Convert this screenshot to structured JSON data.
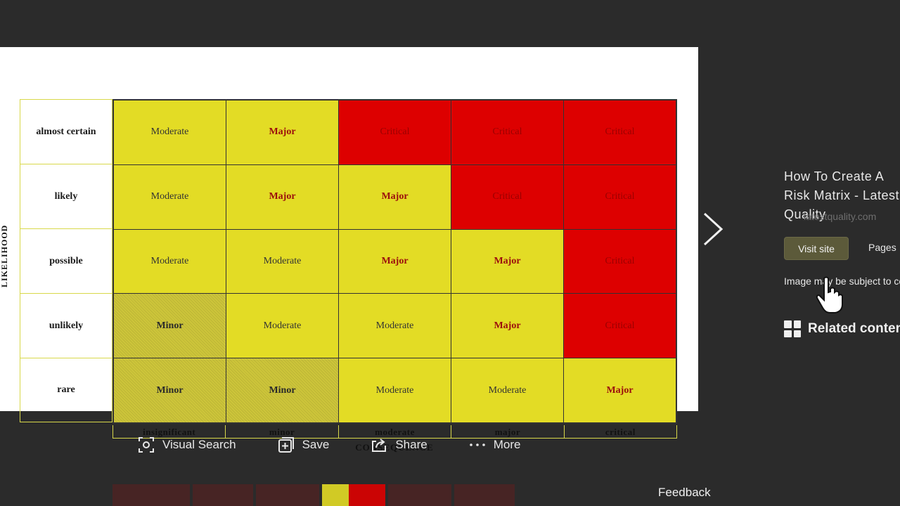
{
  "risk_matrix": {
    "y_axis_label": "LIKELIHOOD",
    "x_axis_label": "CONSEQUENCE",
    "rows": [
      {
        "label": "almost certain",
        "cells": [
          {
            "text": "Moderate",
            "level": "moderate"
          },
          {
            "text": "Major",
            "level": "major"
          },
          {
            "text": "Critical",
            "level": "critical"
          },
          {
            "text": "Critical",
            "level": "critical"
          },
          {
            "text": "Critical",
            "level": "critical"
          }
        ]
      },
      {
        "label": "likely",
        "cells": [
          {
            "text": "Moderate",
            "level": "moderate"
          },
          {
            "text": "Major",
            "level": "major"
          },
          {
            "text": "Major",
            "level": "major"
          },
          {
            "text": "Critical",
            "level": "critical"
          },
          {
            "text": "Critical",
            "level": "critical"
          }
        ]
      },
      {
        "label": "possible",
        "cells": [
          {
            "text": "Moderate",
            "level": "moderate"
          },
          {
            "text": "Moderate",
            "level": "moderate"
          },
          {
            "text": "Major",
            "level": "major"
          },
          {
            "text": "Major",
            "level": "major"
          },
          {
            "text": "Critical",
            "level": "critical"
          }
        ]
      },
      {
        "label": "unlikely",
        "cells": [
          {
            "text": "Minor",
            "level": "minor"
          },
          {
            "text": "Moderate",
            "level": "moderate"
          },
          {
            "text": "Moderate",
            "level": "moderate"
          },
          {
            "text": "Major",
            "level": "major"
          },
          {
            "text": "Critical",
            "level": "critical"
          }
        ]
      },
      {
        "label": "rare",
        "cells": [
          {
            "text": "Minor",
            "level": "minor"
          },
          {
            "text": "Minor",
            "level": "minor"
          },
          {
            "text": "Moderate",
            "level": "moderate"
          },
          {
            "text": "Moderate",
            "level": "moderate"
          },
          {
            "text": "Major",
            "level": "major"
          }
        ]
      }
    ],
    "columns": [
      "insignificant",
      "minor",
      "moderate",
      "major",
      "critical"
    ],
    "colors": {
      "moderate": "#e3dc25",
      "major": "#e3dc25",
      "critical": "#dd0000",
      "minor": "#cdc53a"
    }
  },
  "info_pane": {
    "title": "How To Create A Risk Matrix - Latest\nQuality",
    "domain": "latestquality.com",
    "visit_label": "Visit site",
    "pages_label": "Pages",
    "image_note": "Image may be subject to copyright.",
    "related_title": "Related content"
  },
  "actions": [
    {
      "label": "Visual Search",
      "icon": "visual-search-icon"
    },
    {
      "label": "Save",
      "icon": "save-icon"
    },
    {
      "label": "Share",
      "icon": "share-icon"
    },
    {
      "label": "More",
      "icon": "more-icon"
    }
  ],
  "feedback_label": "Feedback"
}
